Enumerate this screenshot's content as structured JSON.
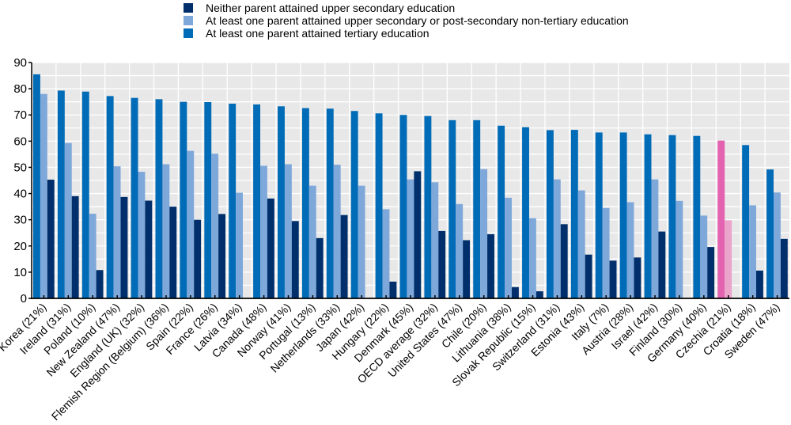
{
  "chart_data": {
    "type": "bar",
    "title": "",
    "xlabel": "",
    "ylabel": "",
    "ylim": [
      0,
      90
    ],
    "yticks": [
      0,
      10,
      20,
      30,
      40,
      50,
      60,
      70,
      80,
      90
    ],
    "grid": true,
    "legend_position": "top-center",
    "categories": [
      "Korea (21%)",
      "Ireland (31%)",
      "Poland (10%)",
      "New Zealand (47%)",
      "England (UK) (32%)",
      "Flemish Region (Belgium) (36%)",
      "Spain (22%)",
      "France (26%)",
      "Latvia (34%)",
      "Canada (48%)",
      "Norway (41%)",
      "Portugal (13%)",
      "Netherlands (33%)",
      "Japan (42%)",
      "Hungary (22%)",
      "Denmark (45%)",
      "OECD average (32%)",
      "United States (47%)",
      "Chile (20%)",
      "Lithuania (38%)",
      "Slovak Republic (15%)",
      "Switzerland (31%)",
      "Estonia (43%)",
      "Italy (7%)",
      "Austria (28%)",
      "Israel (42%)",
      "Finland (30%)",
      "Germany (40%)",
      "Czechia (21%)",
      "Croatia (18%)",
      "Sweden (47%)"
    ],
    "highlight_category": "Czechia (21%)",
    "series": [
      {
        "name": "At least one parent attained tertiary education",
        "color": "#006bb6",
        "highlight_color": "#e463b0",
        "values": [
          85.5,
          79.3,
          78.9,
          77.2,
          76.5,
          76.0,
          75.0,
          74.9,
          74.3,
          74.0,
          73.3,
          72.6,
          72.4,
          71.5,
          70.6,
          70.0,
          69.6,
          68.0,
          68.0,
          65.9,
          65.3,
          64.2,
          64.3,
          63.3,
          63.3,
          62.6,
          62.3,
          62.0,
          60.2,
          58.5,
          49.2
        ]
      },
      {
        "name": "At least one parent attained upper secondary or post-secondary non-tertiary education",
        "color": "#7fa8da",
        "highlight_color": "#eba4cb",
        "values": [
          78.0,
          59.3,
          32.3,
          50.4,
          48.3,
          51.2,
          56.3,
          55.2,
          40.3,
          50.6,
          51.2,
          43.0,
          51.0,
          43.0,
          34.0,
          45.4,
          44.3,
          36.0,
          49.3,
          38.4,
          30.6,
          45.4,
          41.2,
          34.5,
          36.7,
          45.4,
          37.2,
          31.6,
          29.8,
          35.5,
          40.4
        ]
      },
      {
        "name": "Neither parent attained upper secondary education",
        "color": "#002f6c",
        "highlight_color": "#b8357f",
        "values": [
          45.3,
          39.0,
          10.8,
          38.7,
          37.3,
          35.0,
          30.0,
          32.2,
          null,
          38.1,
          29.5,
          23.0,
          31.8,
          null,
          6.4,
          48.5,
          25.7,
          22.2,
          24.5,
          4.3,
          2.7,
          28.3,
          16.7,
          14.4,
          15.6,
          25.5,
          null,
          19.6,
          null,
          10.6,
          22.7
        ]
      }
    ],
    "legend": [
      {
        "label": "Neither parent attained upper secondary education",
        "color": "#002f6c"
      },
      {
        "label": "At least one parent attained upper secondary or post-secondary non-tertiary education",
        "color": "#7fa8da"
      },
      {
        "label": "At least one parent attained tertiary education",
        "color": "#006bb6"
      }
    ]
  }
}
